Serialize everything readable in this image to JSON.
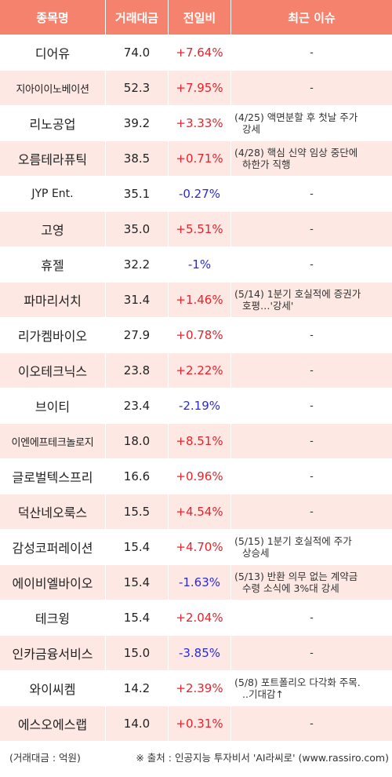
{
  "colors": {
    "header_bg": "#f4826d",
    "row_alt": "#fde8e3",
    "up": "#e8222b",
    "down": "#2b2bd6"
  },
  "header": {
    "name": "종목명",
    "volume": "거래대금",
    "change": "전일비",
    "issue": "최근 이슈"
  },
  "rows": [
    {
      "name": "디어유",
      "volume": "74.0",
      "change": "+7.64%",
      "dir": "up",
      "issue1": "-",
      "issue2": ""
    },
    {
      "name": "지아이이노베이션",
      "volume": "52.3",
      "change": "+7.95%",
      "dir": "up",
      "issue1": "-",
      "issue2": ""
    },
    {
      "name": "리노공업",
      "volume": "39.2",
      "change": "+3.33%",
      "dir": "up",
      "issue1": "(4/25) 액면분할 후 첫날 주가",
      "issue2": "강세"
    },
    {
      "name": "오름테라퓨틱",
      "volume": "38.5",
      "change": "+0.71%",
      "dir": "up",
      "issue1": "(4/28) 핵심 신약 임상 중단에",
      "issue2": "하한가 직행"
    },
    {
      "name": "JYP Ent.",
      "volume": "35.1",
      "change": "-0.27%",
      "dir": "down",
      "issue1": "-",
      "issue2": ""
    },
    {
      "name": "고영",
      "volume": "35.0",
      "change": "+5.51%",
      "dir": "up",
      "issue1": "-",
      "issue2": ""
    },
    {
      "name": "휴젤",
      "volume": "32.2",
      "change": "-1%",
      "dir": "down",
      "issue1": "-",
      "issue2": ""
    },
    {
      "name": "파마리서치",
      "volume": "31.4",
      "change": "+1.46%",
      "dir": "up",
      "issue1": "(5/14) 1분기 호실적에 증권가",
      "issue2": "호평…'강세'"
    },
    {
      "name": "리가켐바이오",
      "volume": "27.9",
      "change": "+0.78%",
      "dir": "up",
      "issue1": "-",
      "issue2": ""
    },
    {
      "name": "이오테크닉스",
      "volume": "23.8",
      "change": "+2.22%",
      "dir": "up",
      "issue1": "-",
      "issue2": ""
    },
    {
      "name": "브이티",
      "volume": "23.4",
      "change": "-2.19%",
      "dir": "down",
      "issue1": "-",
      "issue2": ""
    },
    {
      "name": "이엔에프테크놀로지",
      "volume": "18.0",
      "change": "+8.51%",
      "dir": "up",
      "issue1": "-",
      "issue2": ""
    },
    {
      "name": "글로벌텍스프리",
      "volume": "16.6",
      "change": "+0.96%",
      "dir": "up",
      "issue1": "-",
      "issue2": ""
    },
    {
      "name": "덕산네오룩스",
      "volume": "15.5",
      "change": "+4.54%",
      "dir": "up",
      "issue1": "-",
      "issue2": ""
    },
    {
      "name": "감성코퍼레이션",
      "volume": "15.4",
      "change": "+4.70%",
      "dir": "up",
      "issue1": "(5/15) 1분기 호실적에 주가",
      "issue2": "상승세"
    },
    {
      "name": "에이비엘바이오",
      "volume": "15.4",
      "change": "-1.63%",
      "dir": "down",
      "issue1": "(5/13) 반환 의무 없는 계약금",
      "issue2": "수령 소식에 3%대 강세"
    },
    {
      "name": "테크윙",
      "volume": "15.4",
      "change": "+2.04%",
      "dir": "up",
      "issue1": "-",
      "issue2": ""
    },
    {
      "name": "인카금융서비스",
      "volume": "15.0",
      "change": "-3.85%",
      "dir": "down",
      "issue1": "-",
      "issue2": ""
    },
    {
      "name": "와이씨켐",
      "volume": "14.2",
      "change": "+2.39%",
      "dir": "up",
      "issue1": "(5/8) 포트폴리오 다각화 주목.",
      "issue2": "..기대감↑"
    },
    {
      "name": "에스오에스랩",
      "volume": "14.0",
      "change": "+0.31%",
      "dir": "up",
      "issue1": "-",
      "issue2": ""
    }
  ],
  "footer": {
    "unit": "(거래대금 : 억원)",
    "source": "※ 출처 : 인공지능 투자비서 'AI라씨로' (www.rassiro.com)"
  }
}
